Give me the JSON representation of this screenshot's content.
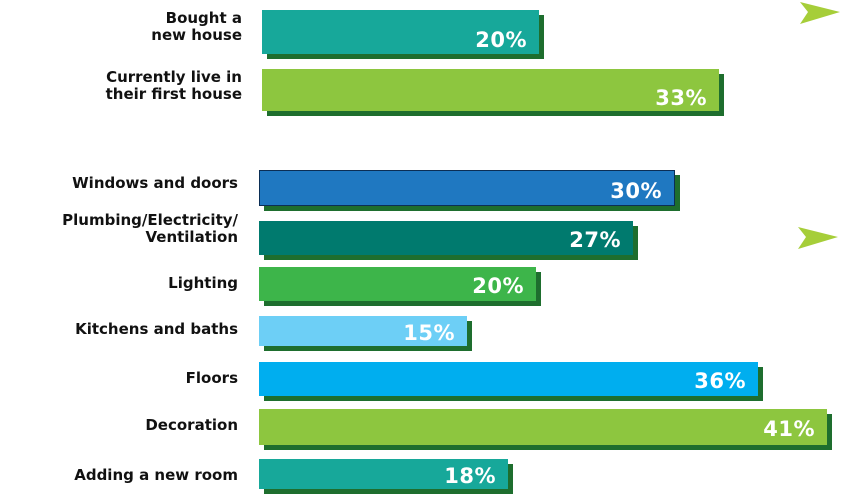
{
  "colors": {
    "teal": "#17a89a",
    "lime": "#8dc63f",
    "blue": "#1f78c1",
    "dark_teal": "#007a6e",
    "green": "#3db54a",
    "light_blue": "#6dcff6",
    "sky_blue": "#00aeef",
    "shadow": "#1e6e2e",
    "arrow": "#a6ce39"
  },
  "chart_data": [
    {
      "type": "bar",
      "orientation": "horizontal",
      "categories": [
        "Bought a new house",
        "Currently live in their first house"
      ],
      "category_labels": [
        "Bought a\nnew house",
        "Currently live in\ntheir first house"
      ],
      "values": [
        20,
        33
      ],
      "value_labels": [
        "20%",
        "33%"
      ],
      "colors": [
        "#17a89a",
        "#8dc63f"
      ],
      "xlim": [
        0,
        41
      ]
    },
    {
      "type": "bar",
      "orientation": "horizontal",
      "categories": [
        "Windows  and doors",
        "Plumbing/Electricity/ Ventilation",
        "Lighting",
        "Kitchens and baths",
        "Floors",
        "Decoration",
        "Adding a new room"
      ],
      "category_labels": [
        "Windows  and doors",
        "Plumbing/Electricity/\nVentilation",
        "Lighting",
        "Kitchens and baths",
        "Floors",
        "Decoration",
        "Adding a new room"
      ],
      "values": [
        30,
        27,
        20,
        15,
        36,
        41,
        18
      ],
      "value_labels": [
        "30%",
        "27%",
        "20%",
        "15%",
        "36%",
        "41%",
        "18%"
      ],
      "colors": [
        "#1f78c1",
        "#007a6e",
        "#3db54a",
        "#6dcff6",
        "#00aeef",
        "#8dc63f",
        "#17a89a"
      ],
      "xlim": [
        0,
        41
      ]
    }
  ],
  "arrows": [
    {
      "name": "arrow-icon-top"
    },
    {
      "name": "arrow-icon-middle"
    }
  ]
}
